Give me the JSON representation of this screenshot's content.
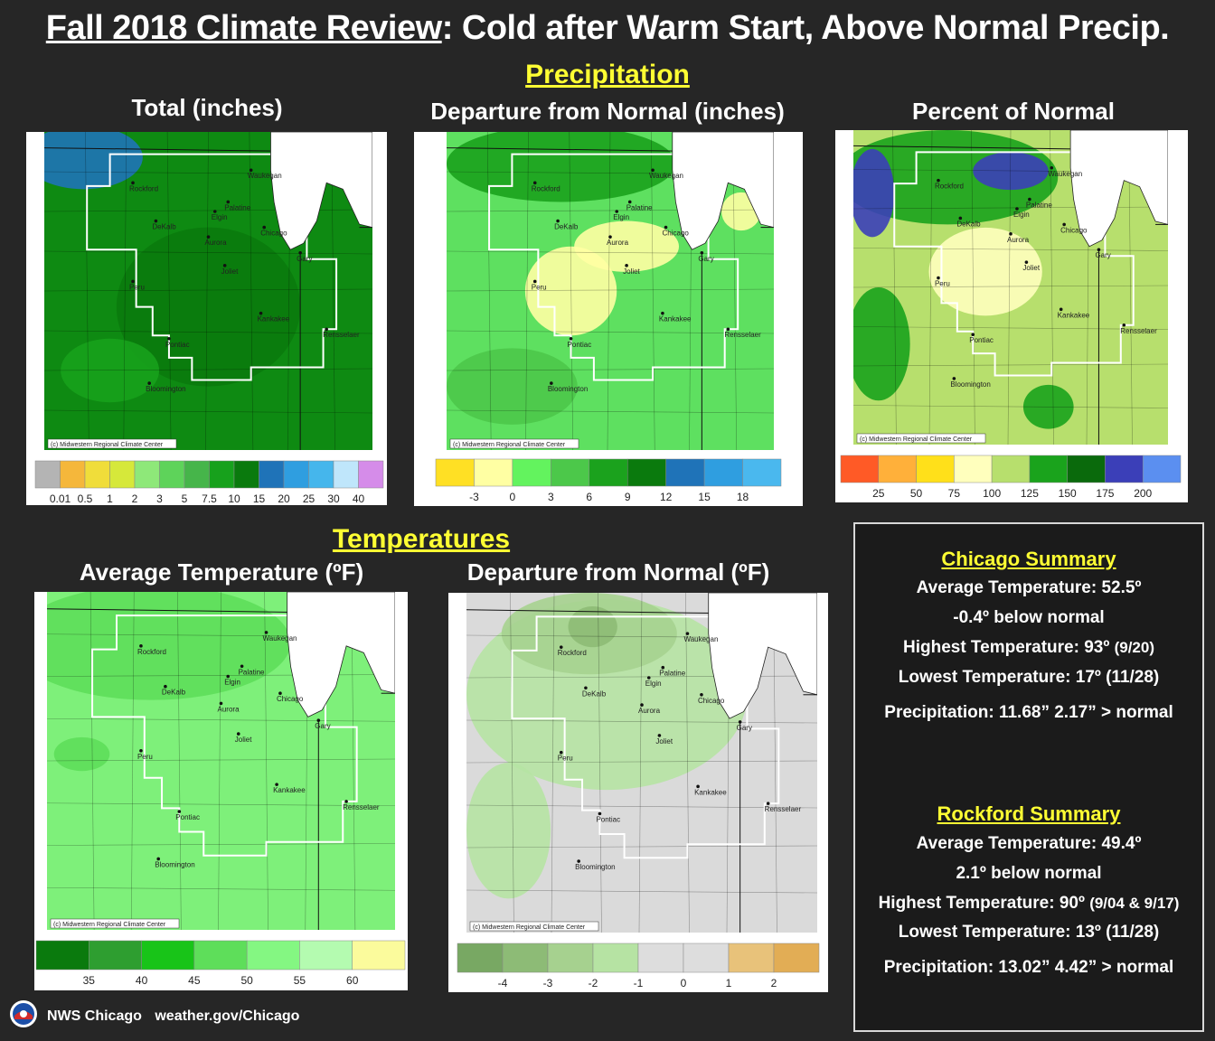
{
  "header": {
    "title_underlined": "Fall 2018 Climate Review",
    "title_rest": ": Cold after Warm Start, Above Normal Precip."
  },
  "sections": {
    "precipitation": "Precipitation",
    "temperatures": "Temperatures"
  },
  "panels": [
    {
      "id": "precip-total",
      "title": "Total (inches)",
      "fill": "#0e8a12",
      "legend_colors": [
        "#b4b4b4",
        "#f5b73b",
        "#f0dd3a",
        "#d6e83a",
        "#8ee879",
        "#5ed35a",
        "#46b54a",
        "#17a11c",
        "#0a7a0d",
        "#1f73b8",
        "#2f9ee0",
        "#45b6ec",
        "#bfe6fb",
        "#d58ce9"
      ],
      "legend_labels": [
        "0.01",
        "0.5",
        "1",
        "2",
        "3",
        "5",
        "7.5",
        "10",
        "15",
        "20",
        "25",
        "30",
        "40"
      ],
      "credit": "(c) Midwestern Regional Climate Center"
    },
    {
      "id": "precip-departure",
      "title": "Departure from Normal (inches)",
      "fill": "#5ee060",
      "legend_colors": [
        "#ffe024",
        "#ffffa3",
        "#63f35e",
        "#4cc84a",
        "#1ba21d",
        "#0a7a0d",
        "#1f73b8",
        "#2f9ee0",
        "#4ab8ee"
      ],
      "legend_labels": [
        "-3",
        "0",
        "3",
        "6",
        "9",
        "12",
        "15",
        "18"
      ],
      "credit": "(c) Midwestern Regional Climate Center"
    },
    {
      "id": "precip-percent",
      "title": "Percent of Normal",
      "fill": "#b7df6d",
      "legend_colors": [
        "#ff5a26",
        "#ffb03a",
        "#ffe01a",
        "#ffffbd",
        "#b7df6d",
        "#1aa31c",
        "#0a6a0c",
        "#3b3fb8",
        "#5b8ff0"
      ],
      "legend_labels": [
        "25",
        "50",
        "75",
        "100",
        "125",
        "150",
        "175",
        "200"
      ],
      "credit": "(c) Midwestern Regional Climate Center"
    },
    {
      "id": "temp-average",
      "title": "Average Temperature (ºF)",
      "fill": "#7ef07a",
      "legend_colors": [
        "#0a7a0d",
        "#2e9e30",
        "#18c418",
        "#5ede5a",
        "#84f782",
        "#b4fbb0",
        "#fbfb9c"
      ],
      "legend_labels": [
        "35",
        "40",
        "45",
        "50",
        "55",
        "60"
      ],
      "credit": "(c) Midwestern Regional Climate Center"
    },
    {
      "id": "temp-departure",
      "title": "Departure from Normal (ºF)",
      "fill": "#dadada",
      "legend_colors": [
        "#78a863",
        "#8dbb76",
        "#a6d18f",
        "#b6e3a3",
        "#dddddd",
        "#dddddd",
        "#e8c27a",
        "#e2ad55"
      ],
      "legend_labels": [
        "-4",
        "-3",
        "-2",
        "-1",
        "0",
        "1",
        "2"
      ],
      "credit": "(c) Midwestern Regional Climate Center"
    }
  ],
  "cities": [
    "Rockford",
    "Waukegan",
    "Palatine",
    "Elgin",
    "DeKalb",
    "Chicago",
    "Aurora",
    "Gary",
    "Joliet",
    "Peru",
    "Kankakee",
    "Rensselaer",
    "Pontiac",
    "Bloomington"
  ],
  "chicago_summary": {
    "heading": "Chicago Summary",
    "avg_temp": "Average Temperature:  52.5º",
    "departure": "-0.4º below normal",
    "high_label": "Highest Temperature:  93º ",
    "high_date": "(9/20)",
    "low": "Lowest Temperature:  17º (11/28)",
    "precip": "Precipitation:  11.68”  2.17” > normal"
  },
  "rockford_summary": {
    "heading": "Rockford Summary",
    "avg_temp": "Average Temperature:  49.4º",
    "departure": "2.1º below normal",
    "high_label": "Highest Temperature: 90º ",
    "high_date": "(9/04 & 9/17)",
    "low": "Lowest Temperature:  13º (11/28)",
    "precip": "Precipitation: 13.02”  4.42” > normal"
  },
  "footer": {
    "office": "NWS Chicago",
    "url": "weather.gov/Chicago"
  }
}
